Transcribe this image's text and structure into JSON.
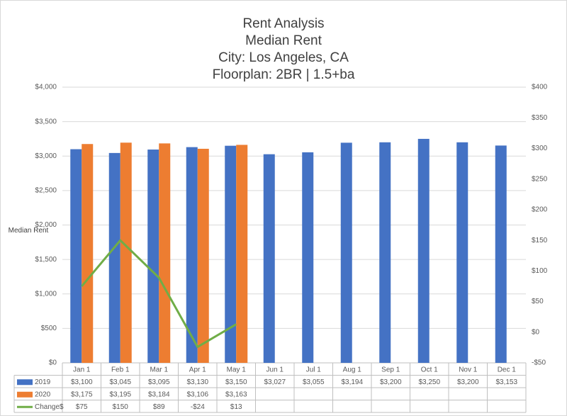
{
  "chart_data": {
    "type": "bar",
    "title": [
      "Rent Analysis",
      "Median Rent",
      "City: Los Angeles, CA",
      "Floorplan:  2BR | 1.5+ba"
    ],
    "ylabel": "Median Rent",
    "categories": [
      "Jan 1",
      "Feb 1",
      "Mar 1",
      "Apr 1",
      "May 1",
      "Jun 1",
      "Jul 1",
      "Aug 1",
      "Sep 1",
      "Oct 1",
      "Nov 1",
      "Dec 1"
    ],
    "series": [
      {
        "name": "2019",
        "type": "bar",
        "color": "#4472c4",
        "values": [
          3100,
          3045,
          3095,
          3130,
          3150,
          3027,
          3055,
          3194,
          3200,
          3250,
          3200,
          3153
        ],
        "value_labels": [
          "$3,100",
          "$3,045",
          "$3,095",
          "$3,130",
          "$3,150",
          "$3,027",
          "$3,055",
          "$3,194",
          "$3,200",
          "$3,250",
          "$3,200",
          "$3,153"
        ]
      },
      {
        "name": "2020",
        "type": "bar",
        "color": "#ed7d31",
        "values": [
          3175,
          3195,
          3184,
          3106,
          3163,
          null,
          null,
          null,
          null,
          null,
          null,
          null
        ],
        "value_labels": [
          "$3,175",
          "$3,195",
          "$3,184",
          "$3,106",
          "$3,163",
          null,
          null,
          null,
          null,
          null,
          null,
          null
        ]
      },
      {
        "name": "Change$",
        "type": "line",
        "axis": "y2",
        "color": "#70ad47",
        "values": [
          75,
          150,
          89,
          -24,
          13,
          null,
          null,
          null,
          null,
          null,
          null,
          null
        ],
        "value_labels": [
          "$75",
          "$150",
          "$89",
          "-$24",
          "$13",
          null,
          null,
          null,
          null,
          null,
          null,
          null
        ]
      }
    ],
    "ylim": [
      0,
      4000
    ],
    "yticks": [
      {
        "value": 0,
        "label": "$0"
      },
      {
        "value": 500,
        "label": "$500"
      },
      {
        "value": 1000,
        "label": "$1,000"
      },
      {
        "value": 1500,
        "label": "$1,500"
      },
      {
        "value": 2000,
        "label": "$2,000"
      },
      {
        "value": 2500,
        "label": "$2,500"
      },
      {
        "value": 3000,
        "label": "$3,000"
      },
      {
        "value": 3500,
        "label": "$3,500"
      },
      {
        "value": 4000,
        "label": "$4,000"
      }
    ],
    "y2lim": [
      -50,
      400
    ],
    "y2ticks": [
      {
        "value": -50,
        "label": "-$50"
      },
      {
        "value": 0,
        "label": "$0"
      },
      {
        "value": 50,
        "label": "$50"
      },
      {
        "value": 100,
        "label": "$100"
      },
      {
        "value": 150,
        "label": "$150"
      },
      {
        "value": 200,
        "label": "$200"
      },
      {
        "value": 250,
        "label": "$250"
      },
      {
        "value": 300,
        "label": "$300"
      },
      {
        "value": 350,
        "label": "$350"
      },
      {
        "value": 400,
        "label": "$400"
      }
    ],
    "grid": true
  }
}
